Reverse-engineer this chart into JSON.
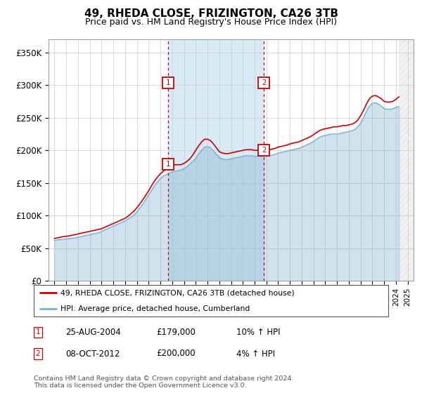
{
  "title": "49, RHEDA CLOSE, FRIZINGTON, CA26 3TB",
  "subtitle": "Price paid vs. HM Land Registry's House Price Index (HPI)",
  "title_fontsize": 11,
  "subtitle_fontsize": 9,
  "ylabel_ticks": [
    "£0",
    "£50K",
    "£100K",
    "£150K",
    "£200K",
    "£250K",
    "£300K",
    "£350K"
  ],
  "ytick_vals": [
    0,
    50000,
    100000,
    150000,
    200000,
    250000,
    300000,
    350000
  ],
  "ylim": [
    0,
    370000
  ],
  "xlim_start": 1994.5,
  "xlim_end": 2025.5,
  "transaction1_date": 2004.646,
  "transaction1_price": 179000,
  "transaction1_label": "1",
  "transaction2_date": 2012.77,
  "transaction2_price": 200000,
  "transaction2_label": "2",
  "legend_line1": "49, RHEDA CLOSE, FRIZINGTON, CA26 3TB (detached house)",
  "legend_line2": "HPI: Average price, detached house, Cumberland",
  "legend_label1_num": "1",
  "legend_label1_date": "25-AUG-2004",
  "legend_label1_price": "£179,000",
  "legend_label1_hpi": "10% ↑ HPI",
  "legend_label2_num": "2",
  "legend_label2_date": "08-OCT-2012",
  "legend_label2_price": "£200,000",
  "legend_label2_hpi": "4% ↑ HPI",
  "footer": "Contains HM Land Registry data © Crown copyright and database right 2024.\nThis data is licensed under the Open Government Licence v3.0.",
  "line_color_red": "#cc0000",
  "line_color_blue": "#7aadcf",
  "shade_color": "#d8eaf5",
  "bg_color": "#ffffff",
  "grid_color": "#cccccc",
  "hatch_color": "#bbbbbb",
  "marker_box_color": "#cc0000",
  "dashed_line_color": "#cc0000",
  "hatch_start": 2024.25
}
